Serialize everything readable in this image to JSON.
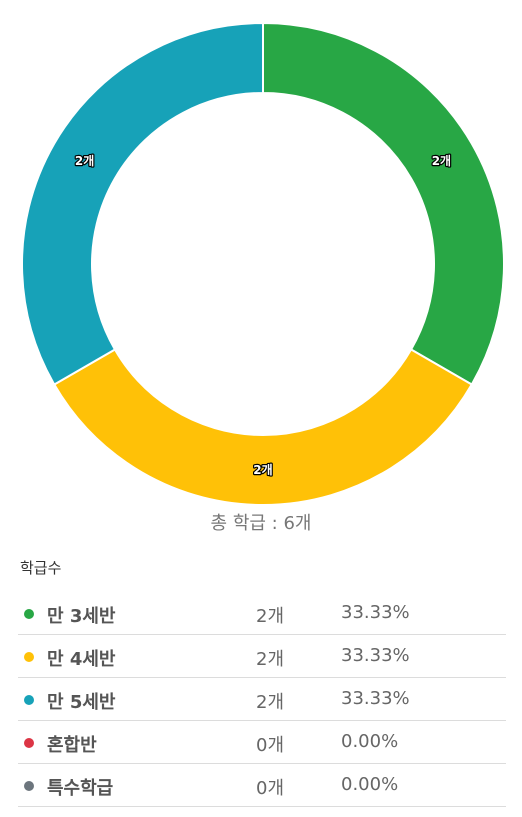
{
  "chart_data": {
    "type": "pie",
    "donut": true,
    "categories": [
      "만 3세반",
      "만 4세반",
      "만 5세반",
      "혼합반",
      "특수학급"
    ],
    "values": [
      2,
      2,
      2,
      0,
      0
    ],
    "slice_labels": [
      "2개",
      "2개",
      "2개",
      "0개",
      "0개"
    ],
    "colors": [
      "#28a745",
      "#ffc107",
      "#17a2b8",
      "#dc3545",
      "#6c757d"
    ],
    "legend": "bottom"
  },
  "summary": {
    "total_text": "총 학급 : 6개"
  },
  "stats": {
    "title": "학급수",
    "rows": [
      {
        "name": "만 3세반",
        "count": "2개",
        "percent": "33.33%",
        "color": "#28a745"
      },
      {
        "name": "만 4세반",
        "count": "2개",
        "percent": "33.33%",
        "color": "#ffc107"
      },
      {
        "name": "만 5세반",
        "count": "2개",
        "percent": "33.33%",
        "color": "#17a2b8"
      },
      {
        "name": "혼합반",
        "count": "0개",
        "percent": "0.00%",
        "color": "#dc3545"
      },
      {
        "name": "특수학급",
        "count": "0개",
        "percent": "0.00%",
        "color": "#6c757d"
      }
    ]
  }
}
